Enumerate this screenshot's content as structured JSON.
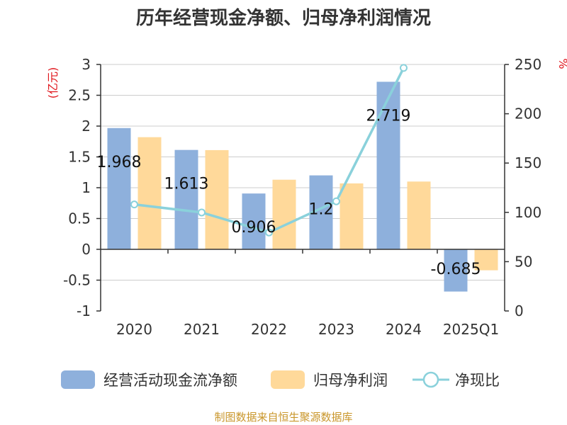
{
  "chart_data": {
    "type": "bar",
    "title": "历年经营现金净额、归母净利润情况",
    "categories": [
      "2020",
      "2021",
      "2022",
      "2023",
      "2024",
      "2025Q1"
    ],
    "y_left_unit": "(亿元)",
    "y_right_unit": "%",
    "y_left_range": [
      -1,
      3
    ],
    "y_left_ticks": [
      "3",
      "2.5",
      "2",
      "1.5",
      "1",
      "0.5",
      "0",
      "-0.5",
      "-1"
    ],
    "y_right_range": [
      0,
      250
    ],
    "y_right_ticks": [
      "250",
      "200",
      "150",
      "100",
      "50",
      "0"
    ],
    "grid": true,
    "legend_position": "bottom",
    "series": [
      {
        "name": "经营活动现金流净额",
        "type": "bar",
        "axis": "left",
        "color": "#8eb0dc",
        "values": [
          1.968,
          1.613,
          0.906,
          1.2,
          2.719,
          -0.685
        ],
        "labels": [
          "1.968",
          "1.613",
          "0.906",
          "1.2",
          "2.719",
          "-0.685"
        ]
      },
      {
        "name": "归母净利润",
        "type": "bar",
        "axis": "left",
        "color": "#ffd99a",
        "values": [
          1.82,
          1.61,
          1.13,
          1.07,
          1.1,
          -0.34
        ]
      },
      {
        "name": "净现比",
        "type": "line",
        "axis": "right",
        "color": "#8ad1db",
        "values": [
          108,
          99.9,
          79.6,
          111.2,
          246.5,
          null
        ]
      }
    ]
  },
  "footer": {
    "source": "制图数据来自恒生聚源数据库"
  }
}
